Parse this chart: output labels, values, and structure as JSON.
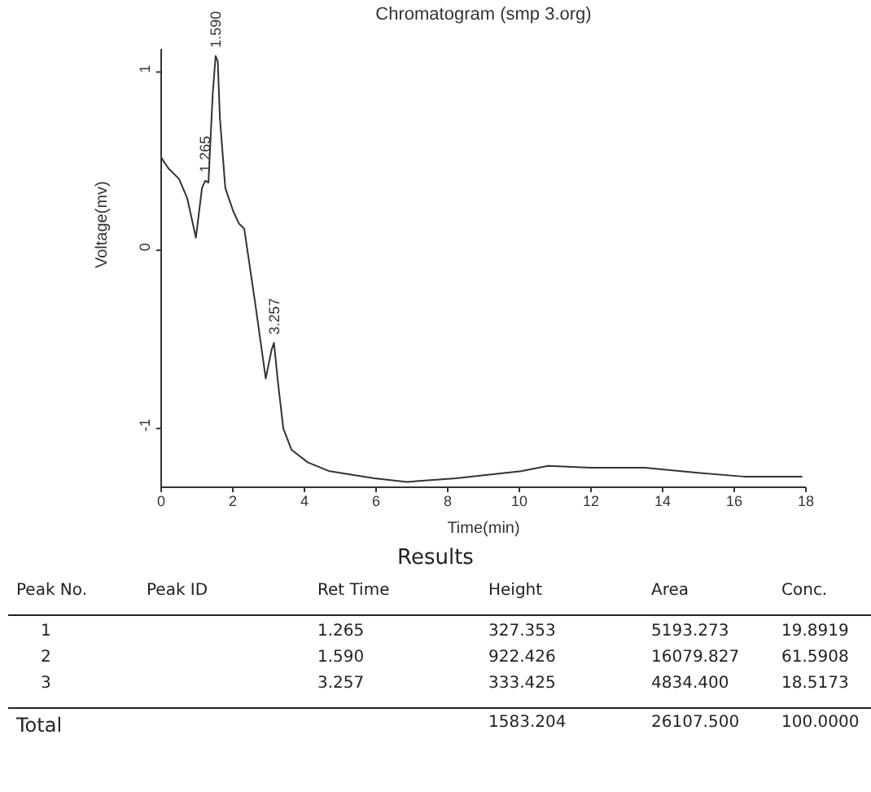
{
  "chart_data": [
    {
      "type": "line",
      "title": "Chromatogram (smp 3.org)",
      "xlabel": "Time(min)",
      "ylabel": "Voltage(mv)",
      "color": "#333333",
      "x": [
        0,
        0.2,
        0.5,
        0.73,
        0.97,
        1.14,
        1.23,
        1.32,
        1.44,
        1.52,
        1.58,
        1.64,
        1.79,
        2.01,
        2.17,
        2.32,
        2.62,
        2.92,
        3.08,
        3.15,
        3.26,
        3.41,
        3.64,
        4.09,
        4.7,
        5.95,
        6.86,
        8.23,
        10.05,
        10.8,
        12.0,
        13.5,
        15.05,
        16.26,
        17.9
      ],
      "values": [
        0.52,
        0.46,
        0.4,
        0.29,
        0.07,
        0.35,
        0.39,
        0.38,
        0.88,
        1.09,
        1.06,
        0.74,
        0.35,
        0.22,
        0.15,
        0.12,
        -0.29,
        -0.72,
        -0.56,
        -0.52,
        -0.74,
        -1.0,
        -1.12,
        -1.19,
        -1.24,
        -1.28,
        -1.3,
        -1.28,
        -1.24,
        -1.21,
        -1.22,
        -1.22,
        -1.25,
        -1.27,
        -1.27
      ],
      "xlim": [
        0,
        18
      ],
      "xticks": [
        0,
        2,
        4,
        6,
        8,
        10,
        12,
        14,
        16,
        18
      ],
      "ylim": [
        -1.33,
        1.13
      ],
      "yticks": [
        -1,
        0,
        1
      ],
      "annotations": [
        {
          "text": "1.265",
          "x": 1.23,
          "y": 0.39
        },
        {
          "text": "1.590",
          "x": 1.52,
          "y": 1.09
        },
        {
          "text": "3.257",
          "x": 3.15,
          "y": -0.52
        }
      ]
    },
    {
      "type": "other",
      "title": "Results",
      "annotations": [
        "Peak No.",
        "Peak ID",
        "Ret Time",
        "Height",
        "Area",
        "Conc.",
        "1",
        null,
        "1.265",
        "327.353",
        "5193.273",
        "19.8919",
        "2",
        null,
        "1.590",
        "922.426",
        "16079.827",
        "61.5908",
        "3",
        null,
        "3.257",
        "333.425",
        "4834.400",
        "18.5173",
        "Total",
        null,
        null,
        "1583.204",
        "26107.500",
        "100.0000"
      ]
    }
  ]
}
